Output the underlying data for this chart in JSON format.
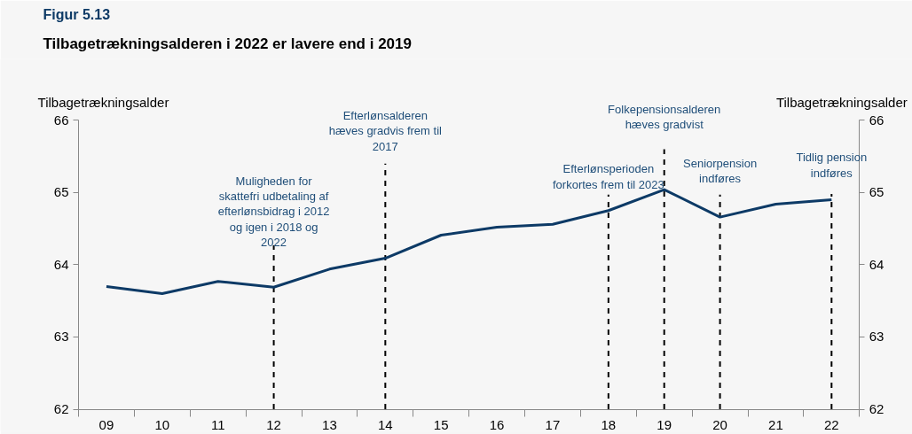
{
  "chart_data": {
    "type": "line",
    "title": "Figur 5.13",
    "subtitle": "Tilbagetrækningsalderen i 2022 er lavere end i 2019",
    "ylabel": "Tilbagetrækningsalder",
    "y2label": "Tilbagetrækningsalder",
    "categories": [
      "09",
      "10",
      "11",
      "12",
      "13",
      "14",
      "15",
      "16",
      "17",
      "18",
      "19",
      "20",
      "21",
      "22"
    ],
    "series": [
      {
        "color": "#0d3a66",
        "values": [
          63.7,
          63.6,
          63.77,
          63.69,
          63.94,
          64.09,
          64.41,
          64.52,
          64.56,
          64.75,
          65.04,
          64.66,
          64.84,
          64.9
        ]
      }
    ],
    "ylim": [
      62,
      66
    ],
    "yticks": [
      62,
      63,
      64,
      65,
      66
    ],
    "y2lim": [
      62,
      66
    ],
    "y2ticks": [
      62,
      63,
      64,
      65,
      66
    ],
    "ref_lines": [
      {
        "axis": "x",
        "value": "12",
        "label": "Muligheden for\nskattefri udbetaling af\nefterlønsbidrag i 2012\nog igen i 2018 og\n2022",
        "color": "#000000",
        "line_style": "dashed"
      },
      {
        "axis": "x",
        "value": "14",
        "label": "Efterlønsalderen\nhæves gradvis frem til\n2017",
        "color": "#000000",
        "line_style": "dashed"
      },
      {
        "axis": "x",
        "value": "18",
        "label": "Efterlønsperioden\nforkortes frem til 2023",
        "color": "#000000",
        "line_style": "dashed"
      },
      {
        "axis": "x",
        "value": "19",
        "label": "Folkepensionsalderen\nhæves gradvist",
        "color": "#000000",
        "line_style": "dashed"
      },
      {
        "axis": "x",
        "value": "20",
        "label": "Seniorpension\nindføres",
        "color": "#000000",
        "line_style": "dashed"
      },
      {
        "axis": "x",
        "value": "22",
        "label": "Tidlig pension\nindføres",
        "color": "#000000",
        "line_style": "dashed"
      }
    ],
    "marker": "none",
    "line_style": "solid"
  }
}
